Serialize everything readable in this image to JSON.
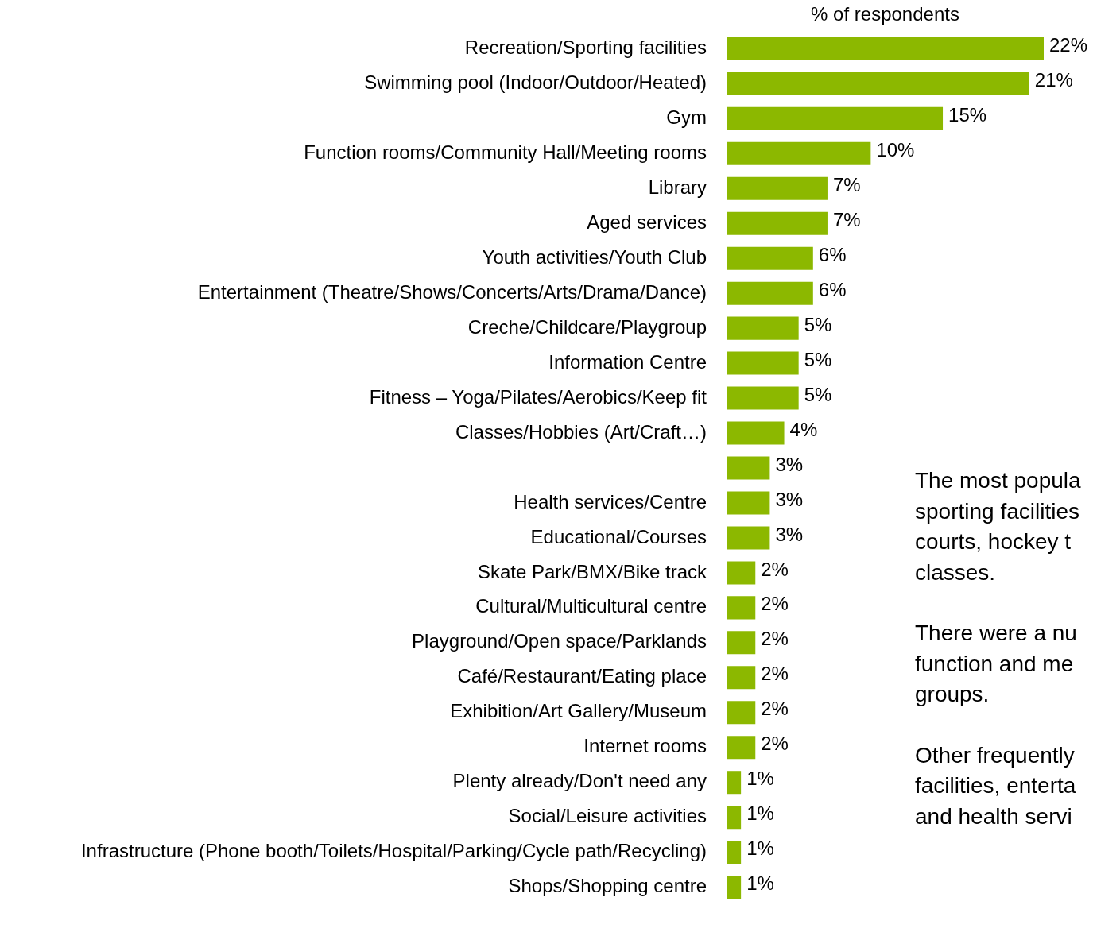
{
  "chart_data": {
    "type": "bar",
    "orientation": "horizontal",
    "xlabel": "% of respondents",
    "categories": [
      "Recreation/Sporting facilities",
      "Swimming pool (Indoor/Outdoor/Heated)",
      "Gym",
      "Function rooms/Community Hall/Meeting rooms",
      "Library",
      "Aged services",
      "Youth activities/Youth Club",
      "Entertainment (Theatre/Shows/Concerts/Arts/Drama/Dance)",
      "Creche/Childcare/Playgroup",
      "Information Centre",
      "Fitness – Yoga/Pilates/Aerobics/Keep fit",
      "Classes/Hobbies (Art/Craft…)",
      null,
      "Health services/Centre",
      "Educational/Courses",
      "Skate Park/BMX/Bike track",
      "Cultural/Multicultural centre",
      "Playground/Open space/Parklands",
      "Café/Restaurant/Eating place",
      "Exhibition/Art Gallery/Museum",
      "Internet rooms",
      "Plenty already/Don't need any",
      "Social/Leisure activities",
      "Infrastructure (Phone booth/Toilets/Hospital/Parking/Cycle path/Recycling)",
      "Shops/Shopping centre"
    ],
    "values": [
      22,
      21,
      15,
      10,
      7,
      7,
      6,
      6,
      5,
      5,
      5,
      4,
      3,
      3,
      3,
      2,
      2,
      2,
      2,
      2,
      2,
      1,
      1,
      1,
      1
    ],
    "value_labels": [
      "22%",
      "21%",
      "15%",
      "10%",
      "7%",
      "7%",
      "6%",
      "6%",
      "5%",
      "5%",
      "5%",
      "4%",
      "3%",
      "3%",
      "3%",
      "2%",
      "2%",
      "2%",
      "2%",
      "2%",
      "2%",
      "1%",
      "1%",
      "1%",
      "1%"
    ],
    "color": "#8cb800",
    "xlim": [
      0,
      22
    ],
    "tick_labels": "y",
    "grid": false,
    "legend": false,
    "annotations": [
      "The most popula\nsporting facilities\ncourts, hockey t\nclasses.",
      "There were a nu\nfunction and me\ngroups.",
      "Other frequently\nfacilities, enterta\nand health servi"
    ]
  }
}
